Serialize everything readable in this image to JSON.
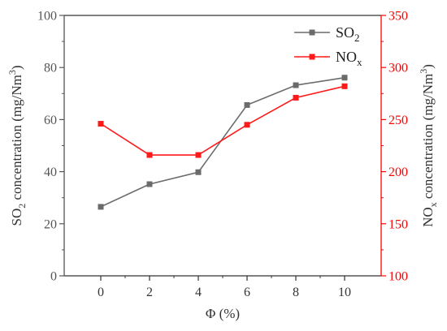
{
  "chart_data": {
    "type": "line",
    "x": [
      0,
      2,
      4,
      6,
      8,
      10
    ],
    "xlabel": "Φ (%)",
    "xlim": [
      -1.5,
      11.5
    ],
    "xticks": [
      0,
      2,
      4,
      6,
      8,
      10
    ],
    "series": [
      {
        "name": "SO2",
        "axis": "left",
        "color": "#6b6b6b",
        "marker": "square",
        "values": [
          26.5,
          35.2,
          39.8,
          65.6,
          73.2,
          76.1
        ]
      },
      {
        "name": "NOx",
        "axis": "right",
        "color": "#ff1a1a",
        "marker": "square",
        "values": [
          246,
          216,
          216,
          245,
          271,
          282
        ]
      }
    ],
    "y_left": {
      "label": "SO2 concentration (mg/Nm3)",
      "ylim": [
        0,
        100
      ],
      "ticks": [
        0,
        20,
        40,
        60,
        80,
        100
      ],
      "color": "#555555"
    },
    "y_right": {
      "label": "NOx concentration (mg/Nm3)",
      "ylim": [
        100,
        350
      ],
      "ticks": [
        100,
        150,
        200,
        250,
        300,
        350
      ],
      "color": "#ff0000"
    },
    "legend": {
      "placement": "top-right",
      "items": [
        {
          "base": "SO",
          "sub": "2",
          "color": "#6b6b6b"
        },
        {
          "base": "NO",
          "sub": "x",
          "color": "#ff1a1a"
        }
      ]
    },
    "label_parts": {
      "xlabel": {
        "text": "Φ (%)"
      },
      "y_left": {
        "pre": "SO",
        "sub": "2",
        "mid": " concentration (mg/Nm",
        "sup": "3",
        "post": ")"
      },
      "y_right": {
        "pre": "NO",
        "sub": "x",
        "mid": " concentration (mg/Nm",
        "sup": "3",
        "post": ")"
      }
    },
    "grid": false
  }
}
